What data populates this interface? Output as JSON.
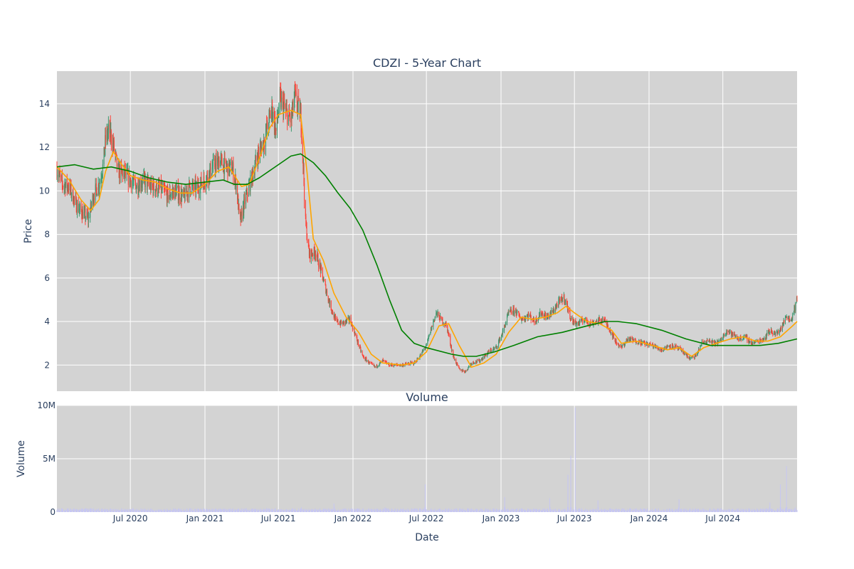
{
  "chart_data": [
    {
      "type": "candlestick",
      "title": "CDZI - 5-Year Chart",
      "ylabel": "Price",
      "xlabel": "",
      "x_range": [
        "2020-01-02",
        "2024-12-31"
      ],
      "ylim": [
        0.8,
        15.5
      ],
      "y_ticks": [
        2,
        4,
        6,
        8,
        10,
        12,
        14
      ],
      "grid": true,
      "legend": "none",
      "colors": {
        "plot_bg": "#d3d3d3",
        "grid": "#ffffff",
        "increasing": "#3d9970",
        "decreasing": "#ff4136",
        "ma_short": "#ffa500",
        "ma_long": "#008000"
      },
      "price_close_path": [
        [
          "2020-01-02",
          11.0
        ],
        [
          "2020-01-15",
          10.3
        ],
        [
          "2020-02-01",
          10.2
        ],
        [
          "2020-02-20",
          9.3
        ],
        [
          "2020-03-05",
          9.0
        ],
        [
          "2020-03-20",
          8.7
        ],
        [
          "2020-04-01",
          9.8
        ],
        [
          "2020-04-15",
          10.3
        ],
        [
          "2020-04-25",
          11.2
        ],
        [
          "2020-05-01",
          12.4
        ],
        [
          "2020-05-10",
          12.8
        ],
        [
          "2020-05-20",
          12.1
        ],
        [
          "2020-06-01",
          10.9
        ],
        [
          "2020-06-15",
          10.8
        ],
        [
          "2020-07-01",
          10.5
        ],
        [
          "2020-07-15",
          10.2
        ],
        [
          "2020-08-01",
          10.5
        ],
        [
          "2020-08-20",
          10.2
        ],
        [
          "2020-09-15",
          10.1
        ],
        [
          "2020-10-01",
          9.8
        ],
        [
          "2020-10-20",
          10.0
        ],
        [
          "2020-11-10",
          9.7
        ],
        [
          "2020-11-25",
          10.2
        ],
        [
          "2020-12-10",
          10.1
        ],
        [
          "2021-01-01",
          10.5
        ],
        [
          "2021-01-20",
          11.1
        ],
        [
          "2021-02-05",
          11.4
        ],
        [
          "2021-02-20",
          11.1
        ],
        [
          "2021-03-10",
          11.0
        ],
        [
          "2021-03-20",
          10.2
        ],
        [
          "2021-03-28",
          8.5
        ],
        [
          "2021-04-10",
          9.6
        ],
        [
          "2021-04-25",
          10.5
        ],
        [
          "2021-05-10",
          11.6
        ],
        [
          "2021-05-25",
          12.2
        ],
        [
          "2021-06-05",
          13.0
        ],
        [
          "2021-06-15",
          13.8
        ],
        [
          "2021-06-25",
          12.7
        ],
        [
          "2021-07-05",
          14.2
        ],
        [
          "2021-07-20",
          13.6
        ],
        [
          "2021-08-01",
          13.2
        ],
        [
          "2021-08-10",
          14.3
        ],
        [
          "2021-08-25",
          13.5
        ],
        [
          "2021-09-01",
          11.0
        ],
        [
          "2021-09-05",
          8.7
        ],
        [
          "2021-09-15",
          7.1
        ],
        [
          "2021-10-01",
          7.2
        ],
        [
          "2021-10-20",
          5.9
        ],
        [
          "2021-11-05",
          4.8
        ],
        [
          "2021-11-20",
          4.0
        ],
        [
          "2021-12-05",
          3.9
        ],
        [
          "2021-12-25",
          4.1
        ],
        [
          "2022-01-10",
          3.2
        ],
        [
          "2022-01-25",
          2.4
        ],
        [
          "2022-02-10",
          2.1
        ],
        [
          "2022-02-25",
          1.9
        ],
        [
          "2022-03-15",
          2.2
        ],
        [
          "2022-04-01",
          2.0
        ],
        [
          "2022-05-01",
          2.0
        ],
        [
          "2022-06-01",
          2.1
        ],
        [
          "2022-06-15",
          2.4
        ],
        [
          "2022-07-01",
          2.9
        ],
        [
          "2022-07-15",
          3.8
        ],
        [
          "2022-07-25",
          4.4
        ],
        [
          "2022-08-05",
          4.1
        ],
        [
          "2022-08-20",
          3.8
        ],
        [
          "2022-09-05",
          2.4
        ],
        [
          "2022-09-20",
          1.8
        ],
        [
          "2022-10-05",
          1.7
        ],
        [
          "2022-10-20",
          2.1
        ],
        [
          "2022-11-10",
          2.2
        ],
        [
          "2022-12-01",
          2.6
        ],
        [
          "2022-12-20",
          2.8
        ],
        [
          "2023-01-05",
          3.5
        ],
        [
          "2023-01-20",
          4.4
        ],
        [
          "2023-02-05",
          4.5
        ],
        [
          "2023-02-20",
          4.1
        ],
        [
          "2023-03-10",
          4.3
        ],
        [
          "2023-03-25",
          4.0
        ],
        [
          "2023-04-10",
          4.4
        ],
        [
          "2023-04-25",
          4.2
        ],
        [
          "2023-05-10",
          4.5
        ],
        [
          "2023-05-25",
          4.9
        ],
        [
          "2023-06-05",
          5.1
        ],
        [
          "2023-06-15",
          4.6
        ],
        [
          "2023-06-25",
          4.0
        ],
        [
          "2023-07-10",
          3.9
        ],
        [
          "2023-07-25",
          4.1
        ],
        [
          "2023-08-10",
          3.9
        ],
        [
          "2023-08-25",
          4.0
        ],
        [
          "2023-09-10",
          4.1
        ],
        [
          "2023-09-25",
          3.7
        ],
        [
          "2023-10-10",
          3.1
        ],
        [
          "2023-10-25",
          2.8
        ],
        [
          "2023-11-10",
          3.2
        ],
        [
          "2023-12-01",
          3.1
        ],
        [
          "2023-12-20",
          3.0
        ],
        [
          "2024-01-10",
          2.9
        ],
        [
          "2024-02-01",
          2.7
        ],
        [
          "2024-02-20",
          2.9
        ],
        [
          "2024-03-10",
          2.8
        ],
        [
          "2024-03-25",
          2.6
        ],
        [
          "2024-04-10",
          2.3
        ],
        [
          "2024-04-25",
          2.4
        ],
        [
          "2024-05-10",
          3.0
        ],
        [
          "2024-05-25",
          3.1
        ],
        [
          "2024-06-10",
          3.0
        ],
        [
          "2024-06-25",
          3.1
        ],
        [
          "2024-07-10",
          3.6
        ],
        [
          "2024-07-25",
          3.4
        ],
        [
          "2024-08-10",
          3.2
        ],
        [
          "2024-08-25",
          3.3
        ],
        [
          "2024-09-10",
          3.0
        ],
        [
          "2024-09-25",
          3.1
        ],
        [
          "2024-10-10",
          3.2
        ],
        [
          "2024-10-25",
          3.6
        ],
        [
          "2024-11-10",
          3.4
        ],
        [
          "2024-11-25",
          3.8
        ],
        [
          "2024-12-05",
          4.3
        ],
        [
          "2024-12-15",
          4.0
        ],
        [
          "2024-12-25",
          4.6
        ],
        [
          "2024-12-31",
          5.0
        ]
      ],
      "ma_short": [
        [
          "2020-01-02",
          11.1
        ],
        [
          "2020-02-01",
          10.5
        ],
        [
          "2020-03-01",
          9.6
        ],
        [
          "2020-03-25",
          9.1
        ],
        [
          "2020-04-15",
          9.6
        ],
        [
          "2020-05-01",
          10.9
        ],
        [
          "2020-05-20",
          11.8
        ],
        [
          "2020-06-10",
          11.2
        ],
        [
          "2020-07-01",
          10.7
        ],
        [
          "2020-08-01",
          10.5
        ],
        [
          "2020-09-01",
          10.4
        ],
        [
          "2020-10-01",
          10.1
        ],
        [
          "2020-11-01",
          9.9
        ],
        [
          "2020-12-01",
          9.9
        ],
        [
          "2021-01-01",
          10.3
        ],
        [
          "2021-02-01",
          10.9
        ],
        [
          "2021-03-01",
          11.1
        ],
        [
          "2021-04-01",
          10.2
        ],
        [
          "2021-04-20",
          10.3
        ],
        [
          "2021-05-15",
          11.5
        ],
        [
          "2021-06-10",
          12.9
        ],
        [
          "2021-07-01",
          13.5
        ],
        [
          "2021-08-01",
          13.7
        ],
        [
          "2021-08-25",
          13.5
        ],
        [
          "2021-09-10",
          10.8
        ],
        [
          "2021-09-25",
          7.8
        ],
        [
          "2021-10-20",
          6.8
        ],
        [
          "2021-11-15",
          5.3
        ],
        [
          "2021-12-15",
          4.2
        ],
        [
          "2022-01-15",
          3.5
        ],
        [
          "2022-02-15",
          2.5
        ],
        [
          "2022-03-15",
          2.1
        ],
        [
          "2022-05-01",
          2.0
        ],
        [
          "2022-06-01",
          2.1
        ],
        [
          "2022-07-01",
          2.6
        ],
        [
          "2022-08-01",
          3.8
        ],
        [
          "2022-08-25",
          3.9
        ],
        [
          "2022-09-20",
          2.9
        ],
        [
          "2022-10-20",
          1.9
        ],
        [
          "2022-11-20",
          2.1
        ],
        [
          "2022-12-20",
          2.5
        ],
        [
          "2023-01-20",
          3.5
        ],
        [
          "2023-02-20",
          4.2
        ],
        [
          "2023-03-20",
          4.1
        ],
        [
          "2023-04-20",
          4.2
        ],
        [
          "2023-05-20",
          4.4
        ],
        [
          "2023-06-10",
          4.7
        ],
        [
          "2023-07-01",
          4.4
        ],
        [
          "2023-08-01",
          4.0
        ],
        [
          "2023-09-01",
          3.9
        ],
        [
          "2023-10-01",
          3.6
        ],
        [
          "2023-10-25",
          3.0
        ],
        [
          "2023-12-01",
          3.1
        ],
        [
          "2024-01-10",
          2.9
        ],
        [
          "2024-02-15",
          2.7
        ],
        [
          "2024-03-15",
          2.8
        ],
        [
          "2024-04-15",
          2.4
        ],
        [
          "2024-05-15",
          2.8
        ],
        [
          "2024-06-15",
          3.0
        ],
        [
          "2024-07-20",
          3.2
        ],
        [
          "2024-08-20",
          3.3
        ],
        [
          "2024-09-20",
          3.1
        ],
        [
          "2024-10-20",
          3.1
        ],
        [
          "2024-11-20",
          3.3
        ],
        [
          "2024-12-20",
          3.8
        ],
        [
          "2024-12-31",
          4.0
        ]
      ],
      "ma_long": [
        [
          "2020-01-02",
          11.1
        ],
        [
          "2020-02-15",
          11.2
        ],
        [
          "2020-04-01",
          11.0
        ],
        [
          "2020-05-15",
          11.1
        ],
        [
          "2020-07-01",
          10.9
        ],
        [
          "2020-08-15",
          10.6
        ],
        [
          "2020-10-01",
          10.4
        ],
        [
          "2020-11-15",
          10.3
        ],
        [
          "2021-01-01",
          10.4
        ],
        [
          "2021-02-15",
          10.5
        ],
        [
          "2021-03-15",
          10.3
        ],
        [
          "2021-04-15",
          10.3
        ],
        [
          "2021-05-15",
          10.6
        ],
        [
          "2021-07-01",
          11.2
        ],
        [
          "2021-08-01",
          11.6
        ],
        [
          "2021-08-25",
          11.7
        ],
        [
          "2021-09-25",
          11.3
        ],
        [
          "2021-10-25",
          10.7
        ],
        [
          "2021-11-25",
          9.9
        ],
        [
          "2021-12-25",
          9.2
        ],
        [
          "2022-01-25",
          8.2
        ],
        [
          "2022-03-01",
          6.6
        ],
        [
          "2022-04-01",
          5.0
        ],
        [
          "2022-05-01",
          3.6
        ],
        [
          "2022-06-01",
          3.0
        ],
        [
          "2022-07-01",
          2.8
        ],
        [
          "2022-09-01",
          2.5
        ],
        [
          "2022-10-01",
          2.4
        ],
        [
          "2022-11-01",
          2.4
        ],
        [
          "2022-12-15",
          2.6
        ],
        [
          "2023-02-01",
          2.9
        ],
        [
          "2023-04-01",
          3.3
        ],
        [
          "2023-06-01",
          3.5
        ],
        [
          "2023-08-01",
          3.8
        ],
        [
          "2023-09-15",
          4.0
        ],
        [
          "2023-10-15",
          4.0
        ],
        [
          "2023-12-01",
          3.9
        ],
        [
          "2024-02-01",
          3.6
        ],
        [
          "2024-04-01",
          3.2
        ],
        [
          "2024-06-01",
          2.9
        ],
        [
          "2024-08-01",
          2.9
        ],
        [
          "2024-10-01",
          2.9
        ],
        [
          "2024-11-15",
          3.0
        ],
        [
          "2024-12-31",
          3.2
        ]
      ]
    },
    {
      "type": "bar",
      "title": "Volume",
      "ylabel": "Volume",
      "xlabel": "Date",
      "x_range": [
        "2020-01-02",
        "2024-12-31"
      ],
      "ylim": [
        0,
        10000000
      ],
      "y_ticks": [
        {
          "value": 0,
          "label": "0"
        },
        {
          "value": 5000000,
          "label": "5M"
        },
        {
          "value": 10000000,
          "label": "10M"
        }
      ],
      "x_ticks": [
        {
          "date": "2020-07-01",
          "label": "Jul 2020"
        },
        {
          "date": "2021-01-01",
          "label": "Jan 2021"
        },
        {
          "date": "2021-07-01",
          "label": "Jul 2021"
        },
        {
          "date": "2022-01-01",
          "label": "Jan 2022"
        },
        {
          "date": "2022-07-01",
          "label": "Jul 2022"
        },
        {
          "date": "2023-01-01",
          "label": "Jan 2023"
        },
        {
          "date": "2023-07-01",
          "label": "Jul 2023"
        },
        {
          "date": "2024-01-01",
          "label": "Jan 2024"
        },
        {
          "date": "2024-07-01",
          "label": "Jul 2024"
        }
      ],
      "grid": true,
      "colors": {
        "plot_bg": "#d3d3d3",
        "bar": "#c6c6f2",
        "grid": "#ffffff"
      },
      "baseline_volume": 300000,
      "spikes": [
        [
          "2021-08-28",
          2600000
        ],
        [
          "2021-11-15",
          800000
        ],
        [
          "2022-03-20",
          1400000
        ],
        [
          "2022-06-28",
          2600000
        ],
        [
          "2023-01-10",
          1400000
        ],
        [
          "2023-05-01",
          1300000
        ],
        [
          "2023-06-15",
          3500000
        ],
        [
          "2023-06-22",
          5300000
        ],
        [
          "2023-07-03",
          9800000
        ],
        [
          "2023-08-28",
          1100000
        ],
        [
          "2024-03-15",
          1200000
        ],
        [
          "2024-10-25",
          900000
        ],
        [
          "2024-11-20",
          2600000
        ],
        [
          "2024-12-05",
          4300000
        ],
        [
          "2024-12-28",
          1300000
        ]
      ]
    }
  ]
}
